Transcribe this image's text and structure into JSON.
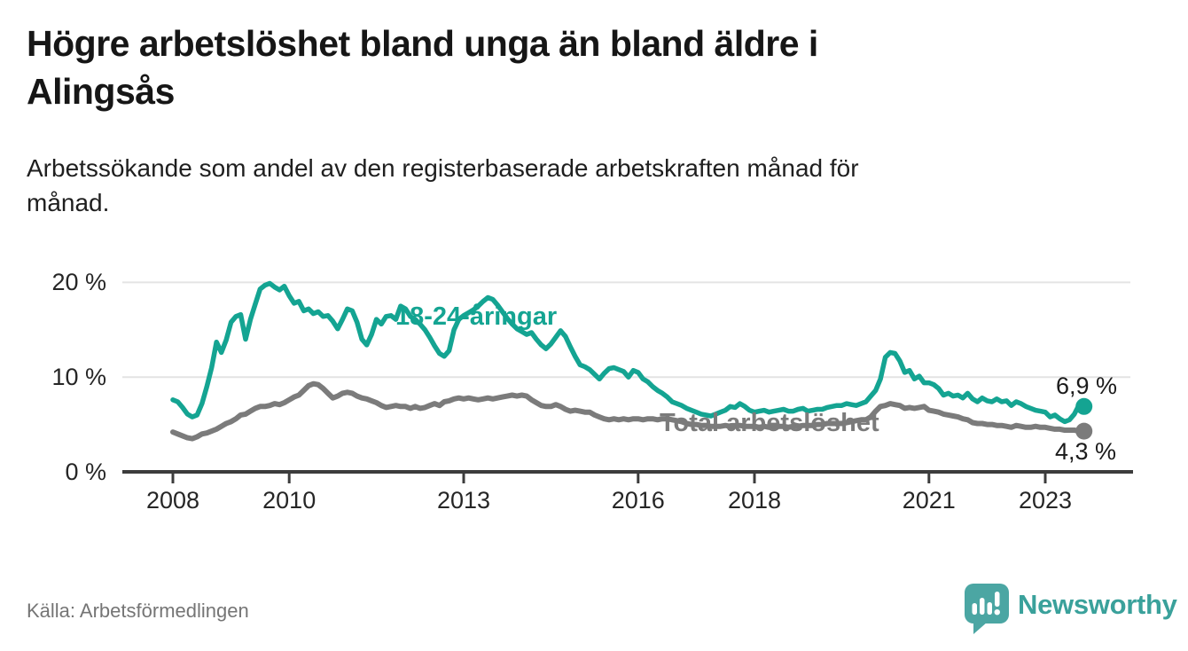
{
  "header": {
    "title": "Högre arbetslöshet bland unga än bland äldre i Alingsås",
    "title_lines": [
      "Högre arbetslöshet bland unga än bland äldre i",
      "Alingsås"
    ],
    "subtitle": "Arbetssökande som andel av den registerbaserade arbetskraften månad för månad.",
    "subtitle_lines": [
      "Arbetssökande som andel av den registerbaserade arbetskraften månad för",
      "månad."
    ]
  },
  "footer": {
    "source": "Källa: Arbetsförmedlingen",
    "brand": "Newsworthy",
    "logo_icon": "bar-chart-speech-bubble-icon"
  },
  "colors": {
    "youth_line": "#14a492",
    "total_line": "#7b7b7b",
    "grid": "#e4e4e4",
    "axis": "#3c3c3c",
    "text_dark": "#1b1b1b",
    "source_text": "#757575",
    "brand_teal": "#3aa19b",
    "logo_teal": "#4ba6a3"
  },
  "chart_data": {
    "type": "line",
    "title": "Högre arbetslöshet bland unga än bland äldre i Alingsås",
    "subtitle": "Arbetssökande som andel av den registerbaserade arbetskraften månad för månad.",
    "unit": "%",
    "x_start": "2008-01",
    "x_end": "2023-09",
    "points_per_year": 12,
    "ylim": [
      0,
      21
    ],
    "grid": true,
    "legend_position": "inline-labels",
    "yticks": [
      {
        "value": 0,
        "label": "0 %"
      },
      {
        "value": 10,
        "label": "10 %"
      },
      {
        "value": 20,
        "label": "20 %"
      }
    ],
    "xticks": [
      2008,
      2010,
      2013,
      2016,
      2018,
      2021,
      2023
    ],
    "series": [
      {
        "name": "18-24-åringar",
        "color": "#14a492",
        "end_label": "6,9 %",
        "end_value": 6.9,
        "values": [
          7.6,
          7.4,
          6.8,
          6.1,
          5.8,
          6.0,
          7.2,
          9.0,
          11.0,
          13.7,
          12.6,
          13.9,
          15.8,
          16.4,
          16.6,
          14.0,
          16.1,
          17.7,
          19.3,
          19.7,
          19.9,
          19.5,
          19.2,
          19.6,
          18.6,
          17.8,
          18.0,
          17.0,
          17.2,
          16.7,
          16.9,
          16.4,
          16.5,
          15.9,
          15.1,
          16.1,
          17.2,
          17.0,
          15.8,
          14.0,
          13.4,
          14.5,
          16.1,
          15.6,
          16.4,
          16.5,
          16.1,
          17.5,
          17.2,
          16.4,
          16.1,
          15.6,
          15.0,
          14.2,
          13.3,
          12.5,
          12.2,
          12.8,
          15.0,
          16.1,
          16.5,
          16.8,
          17.1,
          17.5,
          18.0,
          18.4,
          18.2,
          17.6,
          16.9,
          16.2,
          15.6,
          15.1,
          14.8,
          14.5,
          14.7,
          14.0,
          13.4,
          13.0,
          13.5,
          14.2,
          14.9,
          14.3,
          13.2,
          12.2,
          11.3,
          11.1,
          10.8,
          10.3,
          9.8,
          10.4,
          10.9,
          11.0,
          10.8,
          10.6,
          10.0,
          10.7,
          10.5,
          9.8,
          9.5,
          9.0,
          8.6,
          8.3,
          7.9,
          7.4,
          7.2,
          7.0,
          6.7,
          6.5,
          6.3,
          6.1,
          6.0,
          5.9,
          6.1,
          6.3,
          6.5,
          6.9,
          6.8,
          7.2,
          6.9,
          6.5,
          6.3,
          6.4,
          6.5,
          6.3,
          6.4,
          6.5,
          6.6,
          6.4,
          6.4,
          6.6,
          6.7,
          6.4,
          6.5,
          6.6,
          6.6,
          6.8,
          6.9,
          7.0,
          7.0,
          7.2,
          7.1,
          7.0,
          7.2,
          7.4,
          8.0,
          8.6,
          9.8,
          12.1,
          12.6,
          12.5,
          11.7,
          10.5,
          10.7,
          9.8,
          10.1,
          9.4,
          9.4,
          9.2,
          8.8,
          8.1,
          8.3,
          8.0,
          8.1,
          7.8,
          8.3,
          7.7,
          7.4,
          7.8,
          7.5,
          7.4,
          7.7,
          7.4,
          7.5,
          7.0,
          7.4,
          7.2,
          6.9,
          6.7,
          6.5,
          6.4,
          6.3,
          5.8,
          6.0,
          5.6,
          5.3,
          5.5,
          6.1,
          7.1,
          6.9
        ]
      },
      {
        "name": "Total arbetslöshet",
        "color": "#7b7b7b",
        "end_label": "4,3 %",
        "end_value": 4.3,
        "values": [
          4.2,
          4.0,
          3.8,
          3.6,
          3.5,
          3.7,
          4.0,
          4.1,
          4.3,
          4.5,
          4.8,
          5.1,
          5.3,
          5.6,
          6.0,
          6.1,
          6.4,
          6.7,
          6.9,
          6.9,
          7.0,
          7.2,
          7.1,
          7.3,
          7.6,
          7.9,
          8.1,
          8.6,
          9.1,
          9.3,
          9.2,
          8.8,
          8.3,
          7.8,
          8.0,
          8.3,
          8.4,
          8.3,
          8.0,
          7.8,
          7.7,
          7.5,
          7.3,
          7.0,
          6.8,
          6.9,
          7.0,
          6.9,
          6.9,
          6.7,
          6.9,
          6.7,
          6.8,
          7.0,
          7.2,
          7.0,
          7.4,
          7.5,
          7.7,
          7.8,
          7.7,
          7.8,
          7.7,
          7.6,
          7.7,
          7.8,
          7.7,
          7.8,
          7.9,
          8.0,
          8.1,
          8.0,
          8.1,
          8.0,
          7.6,
          7.3,
          7.0,
          6.9,
          6.9,
          7.1,
          6.9,
          6.6,
          6.4,
          6.5,
          6.4,
          6.3,
          6.3,
          6.0,
          5.8,
          5.6,
          5.5,
          5.6,
          5.5,
          5.6,
          5.5,
          5.6,
          5.6,
          5.5,
          5.6,
          5.6,
          5.5,
          5.6,
          5.6,
          5.5,
          5.4,
          5.3,
          5.1,
          5.0,
          5.0,
          4.9,
          4.9,
          4.8,
          4.8,
          4.8,
          4.9,
          4.8,
          4.8,
          4.9,
          4.8,
          4.8,
          4.8,
          4.7,
          4.8,
          4.7,
          4.7,
          4.8,
          4.8,
          4.7,
          4.8,
          4.8,
          4.9,
          4.9,
          4.9,
          5.0,
          5.0,
          5.1,
          5.1,
          5.1,
          5.1,
          5.2,
          5.3,
          5.4,
          5.5,
          5.5,
          5.8,
          6.4,
          6.9,
          7.0,
          7.2,
          7.1,
          7.0,
          6.7,
          6.8,
          6.7,
          6.8,
          6.9,
          6.5,
          6.4,
          6.3,
          6.1,
          6.0,
          5.9,
          5.8,
          5.6,
          5.5,
          5.2,
          5.1,
          5.1,
          5.0,
          5.0,
          4.9,
          4.9,
          4.8,
          4.7,
          4.9,
          4.8,
          4.7,
          4.7,
          4.8,
          4.7,
          4.7,
          4.6,
          4.5,
          4.5,
          4.4,
          4.4,
          4.4,
          4.3,
          4.3
        ]
      }
    ]
  }
}
